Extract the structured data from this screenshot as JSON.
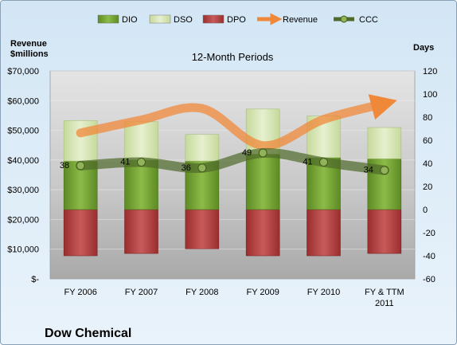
{
  "chart_data": {
    "type": "bar",
    "title": "12-Month Periods",
    "company": "Dow Chemical",
    "left_axis_label": "Revenue $millions",
    "left_axis_label_lines": [
      "Revenue",
      "$millions"
    ],
    "right_axis_label": "Days",
    "left_ylim": [
      0,
      70000
    ],
    "right_ylim": [
      -60,
      120
    ],
    "left_ticks": [
      "$-",
      "$10,000",
      "$20,000",
      "$30,000",
      "$40,000",
      "$50,000",
      "$60,000",
      "$70,000"
    ],
    "right_ticks": [
      "-60",
      "-40",
      "-20",
      "0",
      "20",
      "40",
      "60",
      "80",
      "100",
      "120"
    ],
    "categories": [
      "FY 2006",
      "FY 2007",
      "FY 2008",
      "FY 2009",
      "FY 2010",
      "FY & TTM 2011"
    ],
    "series": [
      {
        "name": "DIO",
        "type": "stacked-bar",
        "axis": "right",
        "values": [
          42,
          43,
          42,
          48,
          45,
          44
        ],
        "color": "#77a033"
      },
      {
        "name": "DSO",
        "type": "stacked-bar",
        "axis": "right",
        "values": [
          35,
          33,
          23,
          39,
          36,
          27
        ],
        "color": "#d8e6b8"
      },
      {
        "name": "DPO",
        "type": "negative-bar",
        "axis": "right",
        "values": [
          -40,
          -38,
          -34,
          -40,
          -40,
          -38
        ],
        "color": "#b33a3a"
      },
      {
        "name": "Revenue",
        "type": "line",
        "axis": "left",
        "values": [
          49125,
          53513,
          57361,
          44875,
          53674,
          59000
        ],
        "color": "#f0883a"
      },
      {
        "name": "CCC",
        "type": "line",
        "axis": "right",
        "values": [
          38,
          41,
          36,
          49,
          41,
          34
        ],
        "color": "#4f6a2a"
      }
    ],
    "data_labels": [
      "38",
      "41",
      "36",
      "49",
      "41",
      "34"
    ],
    "legend": [
      "DIO",
      "DSO",
      "DPO",
      "Revenue",
      "CCC"
    ],
    "legend_position": "top"
  }
}
